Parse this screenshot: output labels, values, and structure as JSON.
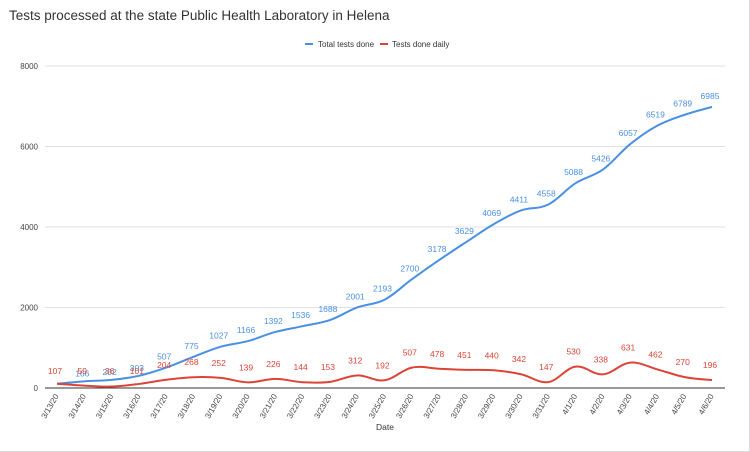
{
  "chart_data": {
    "type": "line",
    "title": "Tests processed at the state Public Health Laboratory in Helena",
    "xlabel": "Date",
    "ylabel": "",
    "ylim": [
      0,
      8000
    ],
    "yticks": [
      "0",
      "2000",
      "4000",
      "6000",
      "8000"
    ],
    "grid": true,
    "legend_position": "top",
    "categories": [
      "3/13/20",
      "3/14/20",
      "3/15/20",
      "3/16/20",
      "3/17/20",
      "3/18/20",
      "3/19/20",
      "3/20/20",
      "3/21/20",
      "3/22/20",
      "3/23/20",
      "3/24/20",
      "3/25/20",
      "3/26/20",
      "3/27/20",
      "3/28/20",
      "3/29/20",
      "3/30/20",
      "3/31/20",
      "4/1/20",
      "4/2/20",
      "4/3/20",
      "4/4/20",
      "4/5/20",
      "4/6/20"
    ],
    "series": [
      {
        "name": "Total tests done",
        "color": "#4a90e2",
        "values": [
          107,
          166,
          202,
          303,
          507,
          775,
          1027,
          1166,
          1392,
          1536,
          1688,
          2001,
          2193,
          2700,
          3178,
          3629,
          4069,
          4411,
          4558,
          5088,
          5426,
          6057,
          6519,
          6789,
          6985
        ],
        "labels": [
          "",
          "166",
          "202",
          "303",
          "507",
          "775",
          "1027",
          "1166",
          "1392",
          "1536",
          "1688",
          "2001",
          "2193",
          "2700",
          "3178",
          "3629",
          "4069",
          "4411",
          "4558",
          "5088",
          "5426",
          "6057",
          "6519",
          "6789",
          "6985"
        ]
      },
      {
        "name": "Tests done daily",
        "color": "#db4437",
        "values": [
          107,
          59,
          36,
          101,
          204,
          268,
          252,
          139,
          226,
          144,
          153,
          312,
          192,
          507,
          478,
          451,
          440,
          342,
          147,
          530,
          338,
          631,
          462,
          270,
          196
        ],
        "labels": [
          "107",
          "59",
          "36",
          "101",
          "204",
          "268",
          "252",
          "139",
          "226",
          "144",
          "153",
          "312",
          "192",
          "507",
          "478",
          "451",
          "440",
          "342",
          "147",
          "530",
          "338",
          "631",
          "462",
          "270",
          "196"
        ]
      }
    ]
  }
}
